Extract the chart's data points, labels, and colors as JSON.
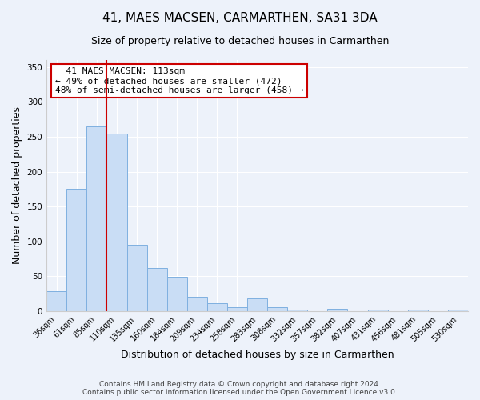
{
  "title": "41, MAES MACSEN, CARMARTHEN, SA31 3DA",
  "subtitle": "Size of property relative to detached houses in Carmarthen",
  "xlabel": "Distribution of detached houses by size in Carmarthen",
  "ylabel": "Number of detached properties",
  "footer_line1": "Contains HM Land Registry data © Crown copyright and database right 2024.",
  "footer_line2": "Contains public sector information licensed under the Open Government Licence v3.0.",
  "bin_labels": [
    "36sqm",
    "61sqm",
    "85sqm",
    "110sqm",
    "135sqm",
    "160sqm",
    "184sqm",
    "209sqm",
    "234sqm",
    "258sqm",
    "283sqm",
    "308sqm",
    "332sqm",
    "357sqm",
    "382sqm",
    "407sqm",
    "431sqm",
    "456sqm",
    "481sqm",
    "505sqm",
    "530sqm"
  ],
  "bar_values": [
    28,
    175,
    265,
    255,
    95,
    62,
    49,
    20,
    11,
    6,
    18,
    6,
    2,
    0,
    3,
    0,
    2,
    0,
    2,
    0,
    2
  ],
  "bar_color": "#c9ddf5",
  "bar_edge_color": "#7fb0e0",
  "ylim": [
    0,
    360
  ],
  "yticks": [
    0,
    50,
    100,
    150,
    200,
    250,
    300,
    350
  ],
  "annotation_title": "41 MAES MACSEN: 113sqm",
  "annotation_line2": "← 49% of detached houses are smaller (472)",
  "annotation_line3": "48% of semi-detached houses are larger (458) →",
  "annotation_color": "#cc0000",
  "vline_x": 2.5,
  "background_color": "#edf2fa",
  "plot_background": "#edf2fa",
  "grid_color": "#ffffff",
  "title_fontsize": 11,
  "subtitle_fontsize": 9,
  "ylabel_fontsize": 9,
  "xlabel_fontsize": 9,
  "tick_fontsize": 7,
  "annotation_fontsize": 8,
  "footer_fontsize": 6.5
}
